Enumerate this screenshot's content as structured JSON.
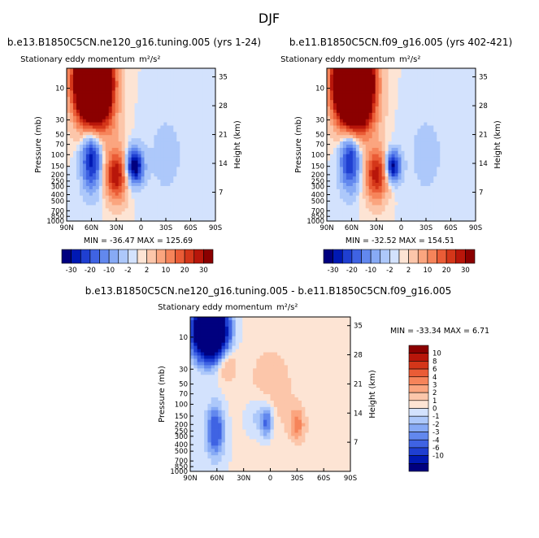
{
  "season": "DJF",
  "colors": {
    "diverging": [
      "#00007f",
      "#0019b3",
      "#1f3fd1",
      "#3f63e3",
      "#6288ee",
      "#87aaf5",
      "#adc8fa",
      "#d3e2fd",
      "#fde4d4",
      "#fcc6aa",
      "#fba57f",
      "#f6845a",
      "#ea5c36",
      "#d43619",
      "#b8160a",
      "#8b0000"
    ]
  },
  "chart_data": [
    {
      "type": "heatmap",
      "id": "top-left",
      "case_title": "b.e13.B1850C5CN.ne120_g16.tuning.005 (yrs 1-24)",
      "title": "Stationary eddy momentum",
      "units": "m²/s²",
      "xlabel": "",
      "ylabel": "Pressure (mb)",
      "ylabel_right": "Height (km)",
      "x_ticks": [
        "90N",
        "60N",
        "30N",
        "0",
        "30S",
        "60S",
        "90S"
      ],
      "y_ticks": [
        "10",
        "30",
        "50",
        "70",
        "100",
        "150",
        "200",
        "250",
        "300",
        "400",
        "500",
        "700",
        "850",
        "1000"
      ],
      "y_ticks_right": [
        "35",
        "28",
        "21",
        "14",
        "7"
      ],
      "stats": "MIN = -36.47   MAX = 125.69",
      "min": -36.47,
      "max": 125.69,
      "colorbar_labels": [
        "-30",
        "-20",
        "-10",
        "-2",
        "2",
        "10",
        "20",
        "30"
      ],
      "features": [
        {
          "lat": 58,
          "p": 8,
          "value": 120,
          "w_lat": 14,
          "w_z": 9
        },
        {
          "lat": 60,
          "p": 120,
          "value": -28,
          "w_lat": 8,
          "w_z": 7
        },
        {
          "lat": 30,
          "p": 200,
          "value": 30,
          "w_lat": 9,
          "w_z": 6
        },
        {
          "lat": 8,
          "p": 150,
          "value": -36,
          "w_lat": 7,
          "w_z": 4
        },
        {
          "lat": 40,
          "p": 30,
          "value": 5,
          "w_lat": 12,
          "w_z": 6
        },
        {
          "lat": -30,
          "p": 100,
          "value": -3,
          "w_lat": 18,
          "w_z": 12
        }
      ]
    },
    {
      "type": "heatmap",
      "id": "top-right",
      "case_title": "b.e11.B1850C5CN.f09_g16.005 (yrs 402-421)",
      "title": "Stationary eddy momentum",
      "units": "m²/s²",
      "xlabel": "",
      "ylabel": "Pressure (mb)",
      "ylabel_right": "Height (km)",
      "x_ticks": [
        "90N",
        "60N",
        "30N",
        "0",
        "30S",
        "60S",
        "90S"
      ],
      "y_ticks": [
        "10",
        "30",
        "50",
        "70",
        "100",
        "150",
        "200",
        "250",
        "300",
        "400",
        "500",
        "700",
        "850",
        "1000"
      ],
      "y_ticks_right": [
        "35",
        "28",
        "21",
        "14",
        "7"
      ],
      "stats": "MIN = -32.52   MAX = 154.51",
      "min": -32.52,
      "max": 154.51,
      "colorbar_labels": [
        "-30",
        "-20",
        "-10",
        "-2",
        "2",
        "10",
        "20",
        "30"
      ],
      "features": [
        {
          "lat": 58,
          "p": 8,
          "value": 150,
          "w_lat": 14,
          "w_z": 9
        },
        {
          "lat": 62,
          "p": 120,
          "value": -26,
          "w_lat": 8,
          "w_z": 7
        },
        {
          "lat": 30,
          "p": 200,
          "value": 28,
          "w_lat": 9,
          "w_z": 6
        },
        {
          "lat": 10,
          "p": 150,
          "value": -32,
          "w_lat": 6,
          "w_z": 3.5
        },
        {
          "lat": 40,
          "p": 30,
          "value": 6,
          "w_lat": 12,
          "w_z": 6
        },
        {
          "lat": -30,
          "p": 100,
          "value": -3,
          "w_lat": 18,
          "w_z": 12
        }
      ]
    },
    {
      "type": "heatmap",
      "id": "bottom-difference",
      "case_title": "b.e13.B1850C5CN.ne120_g16.tuning.005 - b.e11.B1850C5CN.f09_g16.005",
      "title": "Stationary eddy momentum",
      "units": "m²/s²",
      "xlabel": "",
      "ylabel": "Pressure (mb)",
      "ylabel_right": "Height (km)",
      "x_ticks": [
        "90N",
        "60N",
        "30N",
        "0",
        "30S",
        "60S",
        "90S"
      ],
      "y_ticks": [
        "10",
        "30",
        "50",
        "70",
        "100",
        "150",
        "200",
        "250",
        "300",
        "400",
        "500",
        "700",
        "850",
        "1000"
      ],
      "y_ticks_right": [
        "35",
        "28",
        "21",
        "14",
        "7"
      ],
      "stats": "MIN = -33.34   MAX =    6.71",
      "min": -33.34,
      "max": 6.71,
      "colorbar_labels": [
        "10",
        "8",
        "6",
        "4",
        "3",
        "2",
        "1",
        "0",
        "-1",
        "-2",
        "-3",
        "-4",
        "-6",
        "-10"
      ],
      "features": [
        {
          "lat": 68,
          "p": 8,
          "value": -30,
          "w_lat": 12,
          "w_z": 6
        },
        {
          "lat": 50,
          "p": 25,
          "value": 2.5,
          "w_lat": 8,
          "w_z": 4
        },
        {
          "lat": 62,
          "p": 250,
          "value": -6,
          "w_lat": 7,
          "w_z": 6
        },
        {
          "lat": 4,
          "p": 180,
          "value": -5,
          "w_lat": 5,
          "w_z": 4
        },
        {
          "lat": -30,
          "p": 200,
          "value": 3,
          "w_lat": 6,
          "w_z": 4
        },
        {
          "lat": 18,
          "p": 150,
          "value": -2,
          "w_lat": 8,
          "w_z": 5
        },
        {
          "lat": 0,
          "p": 60,
          "value": 1.5,
          "w_lat": 25,
          "w_z": 14
        },
        {
          "lat": -60,
          "p": 400,
          "value": 0.8,
          "w_lat": 15,
          "w_z": 10
        }
      ]
    }
  ]
}
